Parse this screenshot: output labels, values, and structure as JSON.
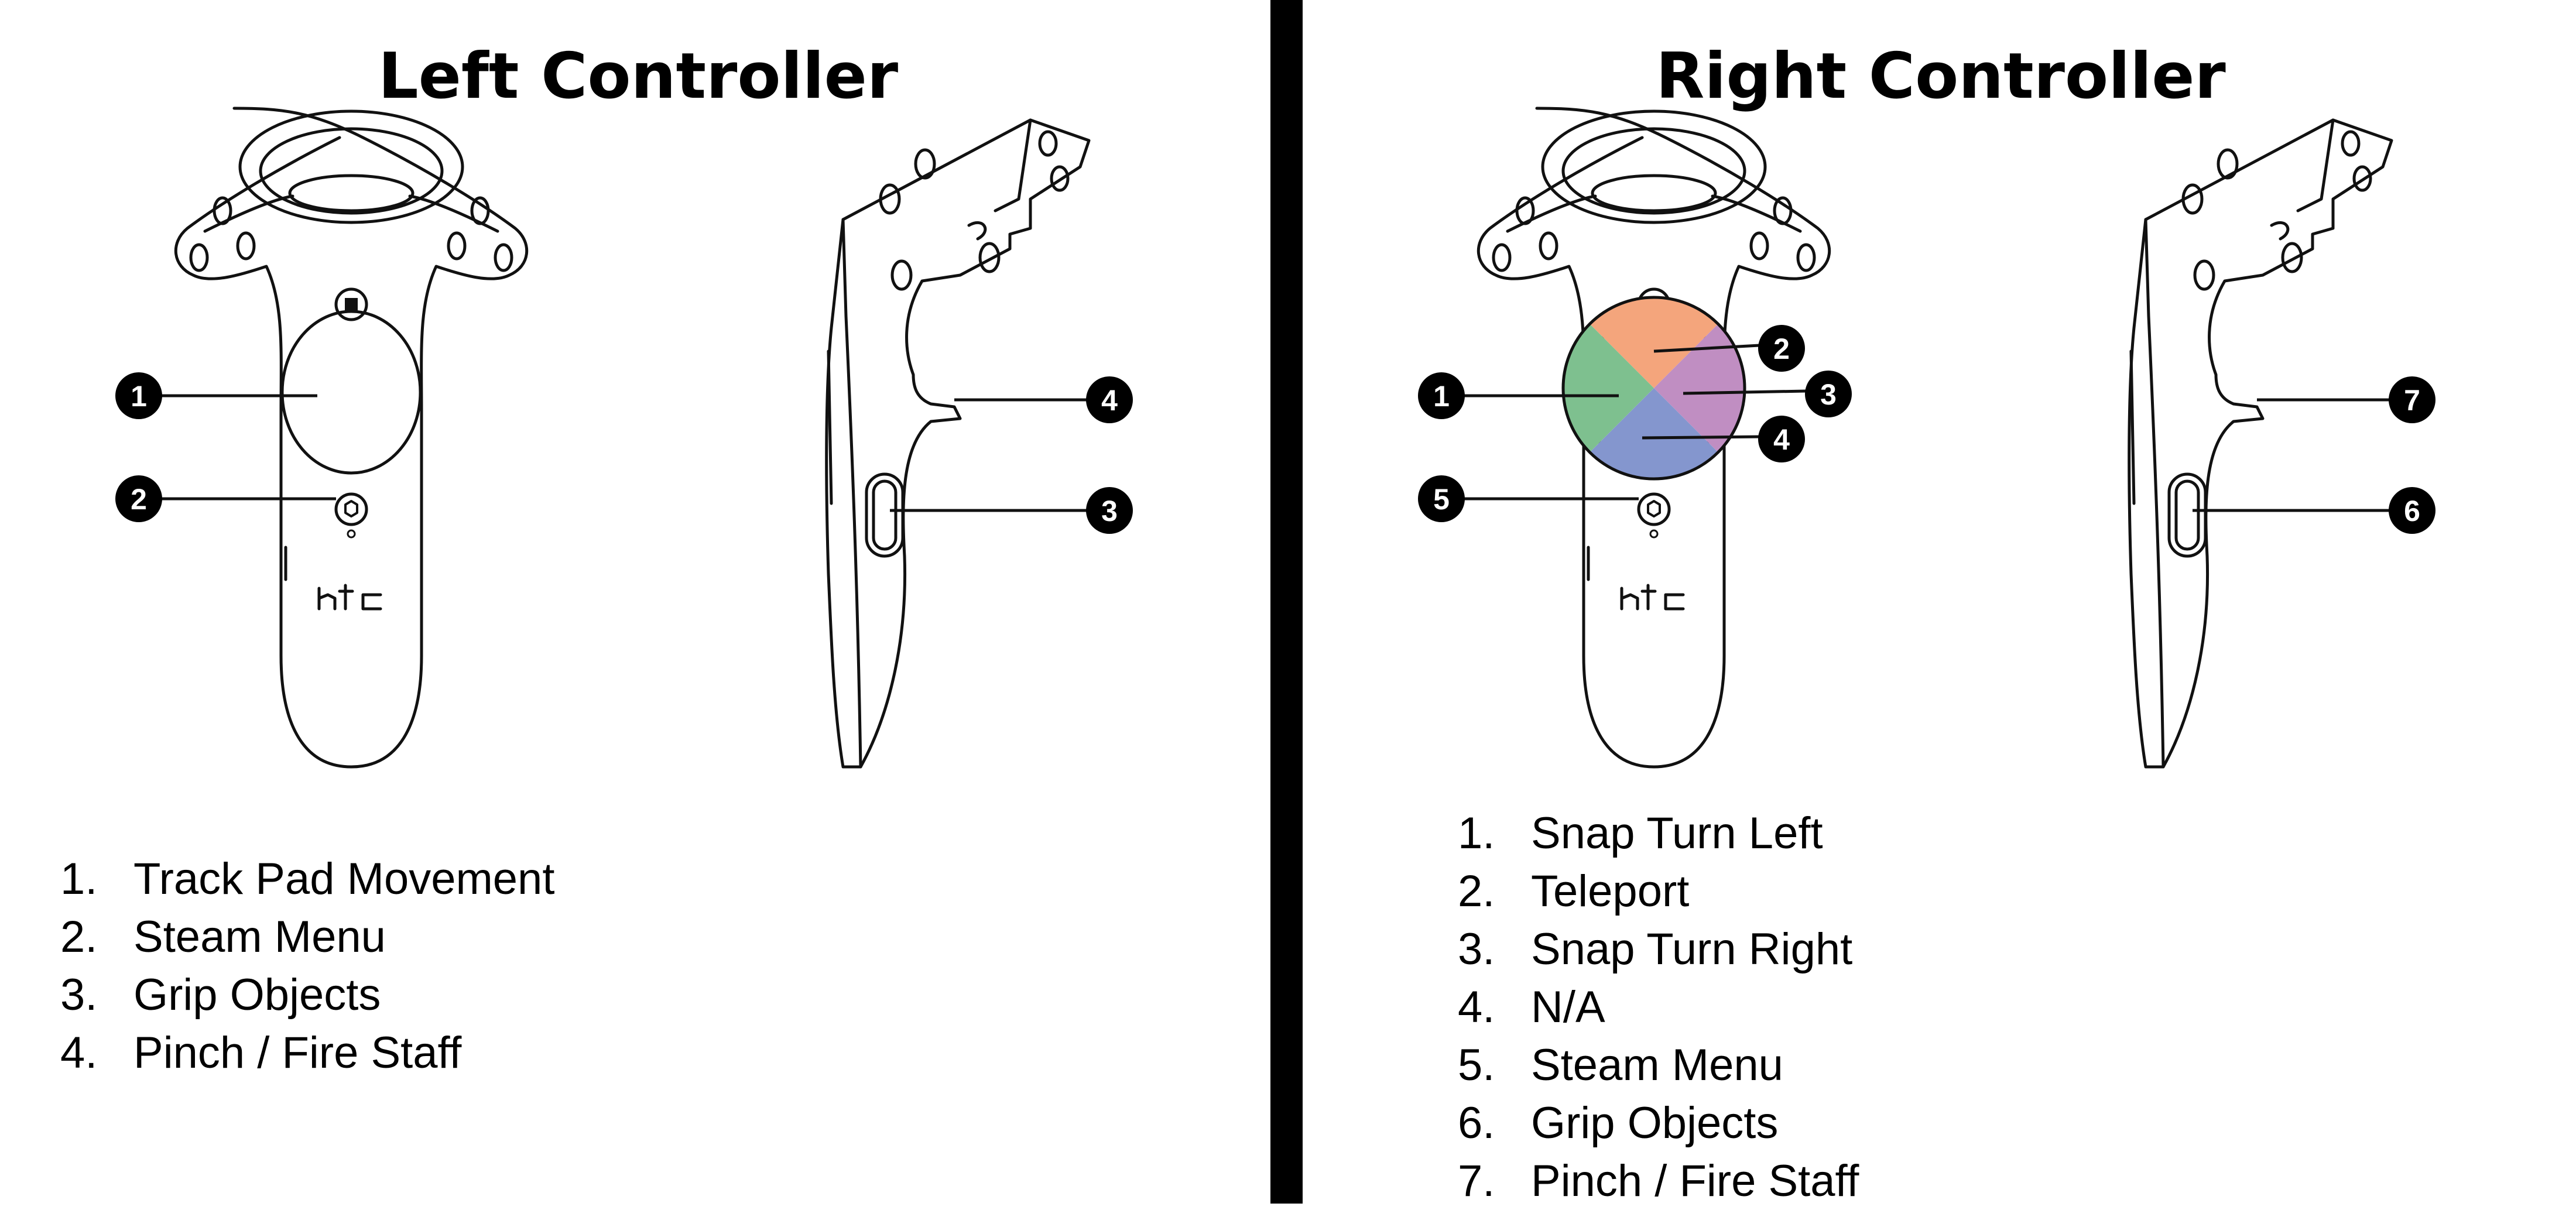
{
  "left": {
    "title": "Left Controller",
    "callouts": [
      "1",
      "2",
      "3",
      "4"
    ],
    "legend": [
      {
        "num": "1.",
        "text": "Track Pad Movement"
      },
      {
        "num": "2.",
        "text": "Steam Menu"
      },
      {
        "num": "3.",
        "text": "Grip Objects"
      },
      {
        "num": "4.",
        "text": "Pinch / Fire Staff"
      }
    ]
  },
  "right": {
    "title": "Right Controller",
    "callouts": [
      "1",
      "2",
      "3",
      "4",
      "5",
      "6",
      "7"
    ],
    "legend": [
      {
        "num": "1.",
        "text": "Snap Turn Left"
      },
      {
        "num": "2.",
        "text": "Teleport"
      },
      {
        "num": "3.",
        "text": "Snap Turn Right"
      },
      {
        "num": "4.",
        "text": "N/A"
      },
      {
        "num": "5.",
        "text": "Steam Menu"
      },
      {
        "num": "6.",
        "text": "Grip Objects"
      },
      {
        "num": "7.",
        "text": "Pinch / Fire Staff"
      }
    ]
  },
  "brand_mark": "htc",
  "trackpad_colors": {
    "up": "#F4A57C",
    "right": "#C08EC2",
    "down": "#8496CE",
    "left": "#7EC08F"
  }
}
